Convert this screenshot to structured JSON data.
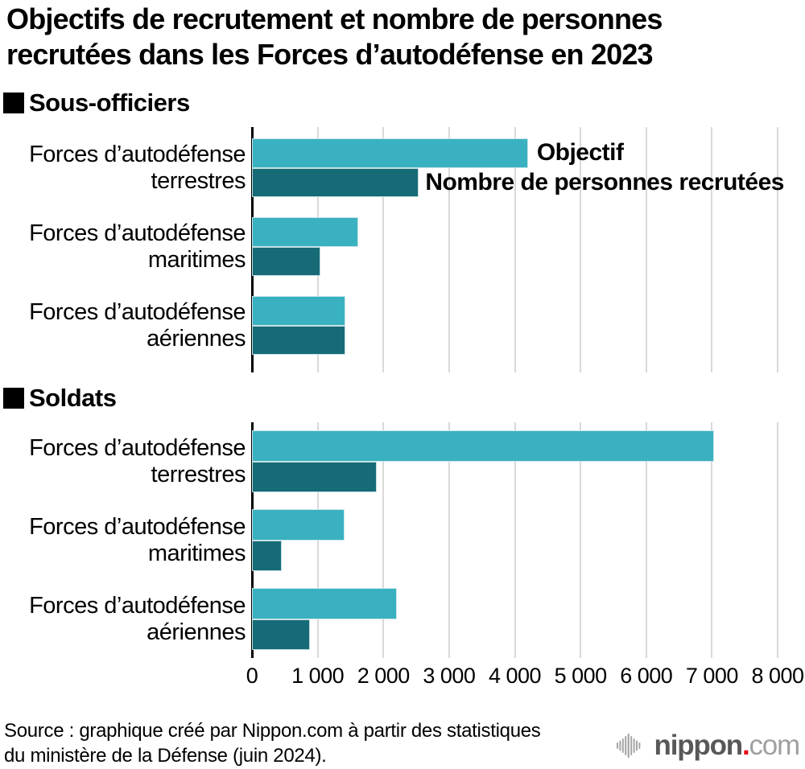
{
  "title_lines": [
    "Objectifs de recrutement et nombre de personnes",
    "recrutées dans les Forces d’autodéfense en 2023"
  ],
  "sections": [
    {
      "label": "Sous-officiers"
    },
    {
      "label": "Soldats"
    }
  ],
  "legend": {
    "objectif": "Objectif",
    "recrues": "Nombre de personnes recrutées"
  },
  "axis": {
    "tick_labels": [
      "0",
      "1 000",
      "2 000",
      "3 000",
      "4 000",
      "5 000",
      "6 000",
      "7 000",
      "8 000"
    ],
    "tick_values": [
      0,
      1000,
      2000,
      3000,
      4000,
      5000,
      6000,
      7000,
      8000
    ]
  },
  "colors": {
    "objectif": "#3ab1c0",
    "recrues": "#166b77",
    "gridline": "#d9d9d9",
    "axis": "#000000",
    "logo_dark": "#595757",
    "logo_light": "#9fa0a0",
    "logo_dot": "#e60012"
  },
  "chart_data": [
    {
      "type": "bar",
      "orientation": "horizontal",
      "section": "Sous-officiers",
      "categories": [
        "Forces d’autodéfense terrestres",
        "Forces d’autodéfense maritimes",
        "Forces d’autodéfense aériennes"
      ],
      "category_lines": [
        [
          "Forces d’autodéfense",
          "terrestres"
        ],
        [
          "Forces d’autodéfense",
          "maritimes"
        ],
        [
          "Forces d’autodéfense",
          "aériennes"
        ]
      ],
      "series": [
        {
          "name": "Objectif",
          "values": [
            4200,
            1620,
            1420
          ],
          "color": "#3ab1c0"
        },
        {
          "name": "Nombre de personnes recrutées",
          "values": [
            2540,
            1040,
            1425
          ],
          "color": "#166b77"
        }
      ],
      "xlabel": "",
      "ylabel": "",
      "xlim": [
        0,
        8000
      ],
      "grid": true,
      "legend_position": "beside-first-bars"
    },
    {
      "type": "bar",
      "orientation": "horizontal",
      "section": "Soldats",
      "categories": [
        "Forces d’autodéfense terrestres",
        "Forces d’autodéfense maritimes",
        "Forces d’autodéfense aériennes"
      ],
      "category_lines": [
        [
          "Forces d’autodéfense",
          "terrestres"
        ],
        [
          "Forces d’autodéfense",
          "maritimes"
        ],
        [
          "Forces d’autodéfense",
          "aériennes"
        ]
      ],
      "series": [
        {
          "name": "Objectif",
          "values": [
            7030,
            1410,
            2200
          ],
          "color": "#3ab1c0"
        },
        {
          "name": "Nombre de personnes recrutées",
          "values": [
            1900,
            450,
            880
          ],
          "color": "#166b77"
        }
      ],
      "xlabel": "",
      "ylabel": "",
      "xlim": [
        0,
        8000
      ],
      "grid": true,
      "legend_position": "none"
    }
  ],
  "source_lines": [
    "Source : graphique créé par Nippon.com à partir des statistiques",
    "du ministère de la Défense (juin 2024)."
  ],
  "logo": {
    "icon": "soundwave-icon",
    "name_bold": "nippon",
    "dot": ".",
    "suffix": "com"
  }
}
